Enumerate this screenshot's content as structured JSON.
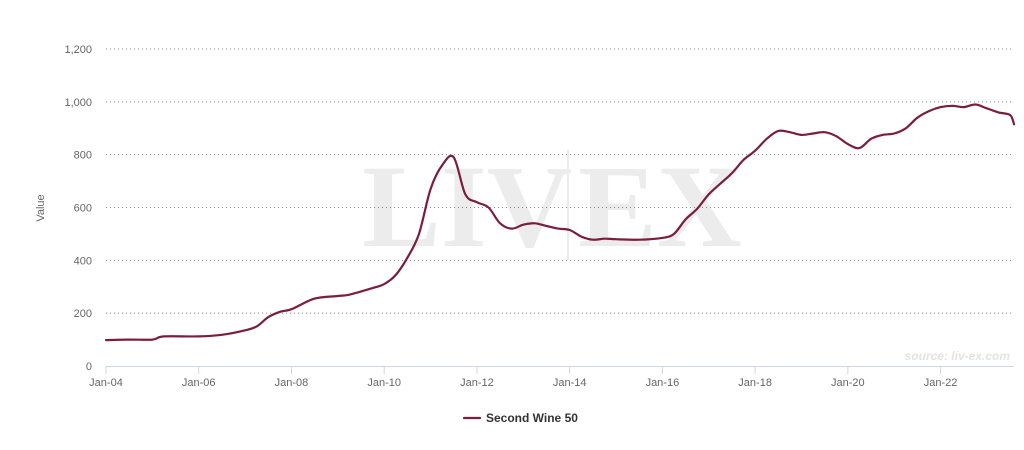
{
  "chart_data": {
    "type": "line",
    "title": "",
    "xlabel": "",
    "ylabel": "Value",
    "ylim": [
      0,
      1200
    ],
    "yticks": [
      0,
      200,
      400,
      600,
      800,
      1000,
      1200
    ],
    "ytick_labels": [
      "0",
      "200",
      "400",
      "600",
      "800",
      "1,000",
      "1,200"
    ],
    "xlim": [
      "2004-01",
      "2023-08"
    ],
    "xticks": [
      "2004-01",
      "2006-01",
      "2008-01",
      "2010-01",
      "2012-01",
      "2014-01",
      "2016-01",
      "2018-01",
      "2020-01",
      "2022-01"
    ],
    "xtick_labels": [
      "Jan-04",
      "Jan-06",
      "Jan-08",
      "Jan-10",
      "Jan-12",
      "Jan-14",
      "Jan-16",
      "Jan-18",
      "Jan-20",
      "Jan-22"
    ],
    "grid": "horizontal dotted",
    "legend_position": "bottom",
    "watermark": "LIV-EX",
    "source": "source: liv-ex.com",
    "series": [
      {
        "name": "Second Wine 50",
        "color": "#7b1e3c",
        "x": [
          "2004-01",
          "2004-07",
          "2005-01",
          "2005-04",
          "2006-01",
          "2006-07",
          "2007-01",
          "2007-04",
          "2007-07",
          "2007-10",
          "2008-01",
          "2008-07",
          "2009-01",
          "2009-04",
          "2009-10",
          "2010-01",
          "2010-04",
          "2010-07",
          "2010-10",
          "2011-01",
          "2011-04",
          "2011-07",
          "2011-10",
          "2012-01",
          "2012-04",
          "2012-07",
          "2012-10",
          "2013-01",
          "2013-04",
          "2013-07",
          "2013-10",
          "2014-01",
          "2014-04",
          "2014-07",
          "2014-10",
          "2015-01",
          "2015-07",
          "2016-01",
          "2016-04",
          "2016-07",
          "2016-10",
          "2017-01",
          "2017-04",
          "2017-07",
          "2017-10",
          "2018-01",
          "2018-04",
          "2018-07",
          "2018-10",
          "2019-01",
          "2019-04",
          "2019-07",
          "2019-10",
          "2020-01",
          "2020-04",
          "2020-07",
          "2020-10",
          "2021-01",
          "2021-04",
          "2021-07",
          "2021-10",
          "2022-01",
          "2022-04",
          "2022-07",
          "2022-10",
          "2023-01",
          "2023-04",
          "2023-07",
          "2023-08"
        ],
        "values": [
          98,
          100,
          100,
          112,
          112,
          118,
          135,
          150,
          185,
          205,
          215,
          255,
          265,
          270,
          295,
          310,
          345,
          410,
          500,
          670,
          760,
          790,
          650,
          620,
          600,
          540,
          520,
          535,
          540,
          530,
          520,
          515,
          490,
          478,
          482,
          480,
          478,
          485,
          500,
          555,
          595,
          650,
          690,
          730,
          780,
          815,
          860,
          890,
          885,
          875,
          880,
          885,
          870,
          840,
          825,
          860,
          875,
          880,
          900,
          940,
          965,
          980,
          985,
          980,
          990,
          975,
          960,
          950,
          915
        ]
      }
    ]
  }
}
